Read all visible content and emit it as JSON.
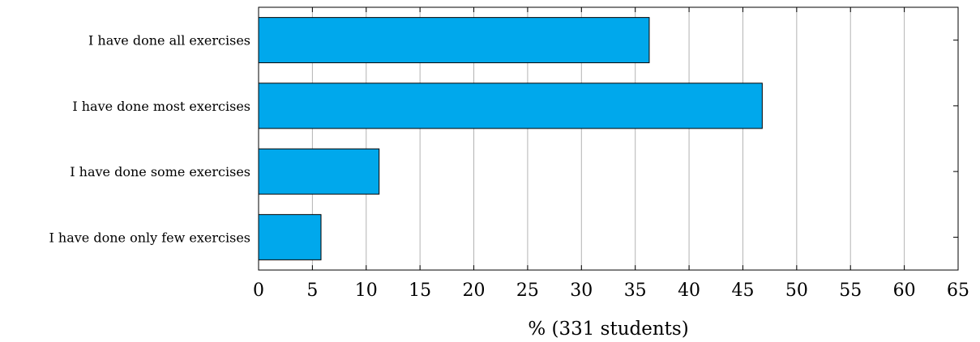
{
  "chart_data": {
    "type": "bar",
    "orientation": "horizontal",
    "categories": [
      "I have done all exercises",
      "I have done most exercises",
      "I have done some exercises",
      "I have done only few exercises"
    ],
    "values": [
      36.3,
      46.8,
      11.2,
      5.8
    ],
    "xlabel": "% (331 students)",
    "ylabel": "",
    "title": "",
    "xlim": [
      0,
      65
    ],
    "xticks": [
      0,
      5,
      10,
      15,
      20,
      25,
      30,
      35,
      40,
      45,
      50,
      55,
      60,
      65
    ],
    "grid": "vertical",
    "bar_color": "#00a8ec",
    "bar_edge_color": "#000000"
  }
}
